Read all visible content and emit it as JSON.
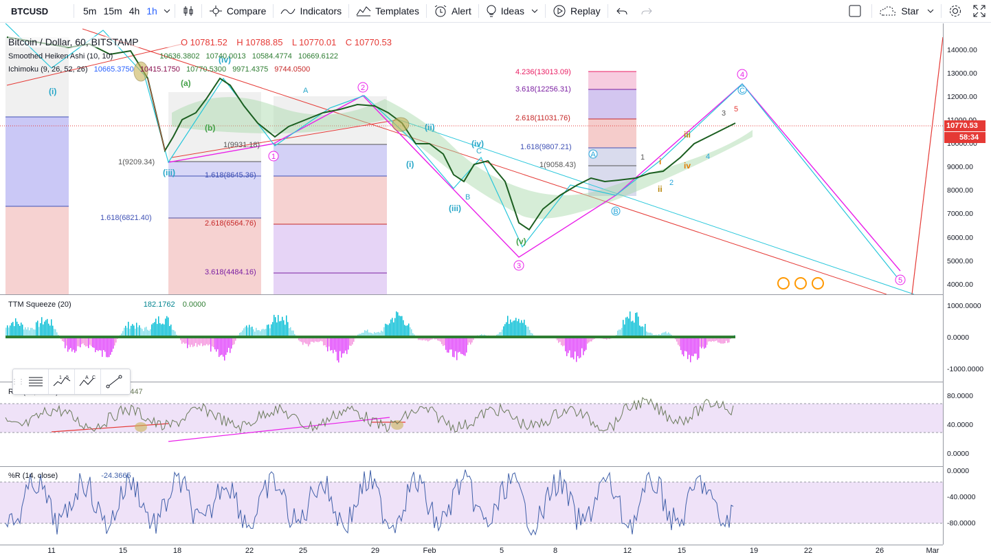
{
  "toolbar": {
    "symbol": "BTCUSD",
    "intervals": [
      "5m",
      "15m",
      "4h",
      "1h"
    ],
    "active_interval": "1h",
    "compare_label": "Compare",
    "indicators_label": "Indicators",
    "templates_label": "Templates",
    "alert_label": "Alert",
    "ideas_label": "Ideas",
    "replay_label": "Replay",
    "star_label": "Star"
  },
  "main_legend": {
    "title": "Bitcoin / Dollar, 60, BITSTAMP",
    "open": "O 10781.52",
    "high": "H 10788.85",
    "low": "L 10770.01",
    "close": "C 10770.53",
    "smoothed_label": "Smoothed Heiken Ashi (10, 10)",
    "smoothed_values": [
      "10636.3802",
      "10740.0013",
      "10584.4774",
      "10669.6122"
    ],
    "ichimoku_label": "Ichimoku (9, 26, 52, 26)",
    "ichimoku_values": [
      "10665.3750",
      "10415.1750",
      "10770.5300",
      "9971.4375",
      "9744.0500"
    ]
  },
  "price_axis": {
    "ticks": [
      "14000.00",
      "13000.00",
      "12000.00",
      "11000.00",
      "10000.00",
      "9000.00",
      "8000.00",
      "7000.00",
      "6000.00",
      "5000.00",
      "4000.00"
    ],
    "current_price": "10770.53",
    "countdown": "58:34"
  },
  "fib_labels": {
    "left_a": [
      "1(9209.34)",
      "1.618(8645.36)",
      "2.618(6564.76)",
      "3.618(4484.16)",
      "1(9931.18)"
    ],
    "left_b": "1.618(6821.40)",
    "right": [
      "4.236(13013.09)",
      "3.618(12256.31)",
      "2.618(11031.76)",
      "1.618(9807.21)",
      "1(9058.43)"
    ]
  },
  "wave_labels": [
    "(i)",
    "(iii)",
    "(a)",
    "(b)",
    "(iv)",
    "(i)",
    "(ii)",
    "(iii)",
    "(iv)",
    "(v)",
    "i",
    "ii",
    "iii",
    "iv",
    "1",
    "2",
    "3",
    "4",
    "5",
    "A",
    "B",
    "C"
  ],
  "ttm_squeeze": {
    "label": "TTM Squeeze (20)",
    "value1": "182.1762",
    "value2": "0.0000",
    "ticks": [
      "1000.0000",
      "0.0000",
      "-1000.0000"
    ]
  },
  "rsi": {
    "label": "RSI (14, close)",
    "value": "61.2447",
    "ticks": [
      "80.0000",
      "40.0000",
      "0.0000"
    ]
  },
  "williams_r": {
    "label": "%R (14, close)",
    "value": "-24.3665",
    "ticks": [
      "0.0000",
      "-40.0000",
      "-80.0000"
    ]
  },
  "time_axis": {
    "labels": [
      "11",
      "15",
      "18",
      "22",
      "25",
      "29",
      "Feb",
      "5",
      "8",
      "12",
      "15",
      "19",
      "22",
      "26",
      "Mar"
    ]
  },
  "colors": {
    "accent": "#2962ff",
    "up": "#26a69a",
    "down": "#ef5350",
    "price_tag": "#e53935",
    "magenta": "#e91ee9",
    "cyan": "#22d3e6"
  }
}
